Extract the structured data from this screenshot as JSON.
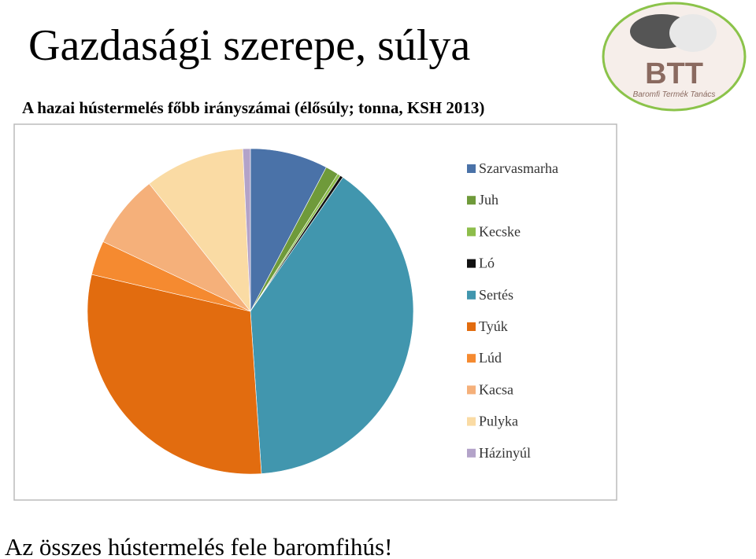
{
  "slide": {
    "title": "Gazdasági szerepe, súlya",
    "footer": "Az összes hústermelés fele baromfihús!"
  },
  "logo": {
    "text": "BTT",
    "caption": "Baromfi Termék Tanács"
  },
  "chart_data": {
    "type": "pie",
    "title": "A hazai hústermelés főbb irányszámai (élősúly; tonna, KSH 2013)",
    "categories": [
      "Szarvasmarha",
      "Juh",
      "Kecske",
      "Ló",
      "Sertés",
      "Tyúk",
      "Lúd",
      "Kacsa",
      "Pulyka",
      "Házinyúl"
    ],
    "values": [
      7.7,
      1.3,
      0.3,
      0.3,
      39.3,
      29.7,
      3.4,
      7.3,
      9.9,
      0.75
    ],
    "colors": [
      "#4a72a8",
      "#6f9a3a",
      "#8dbd4b",
      "#111111",
      "#4196ae",
      "#e26c0f",
      "#f58a30",
      "#f5b07a",
      "#fadba4",
      "#b3a3c9"
    ],
    "legend": "right"
  }
}
